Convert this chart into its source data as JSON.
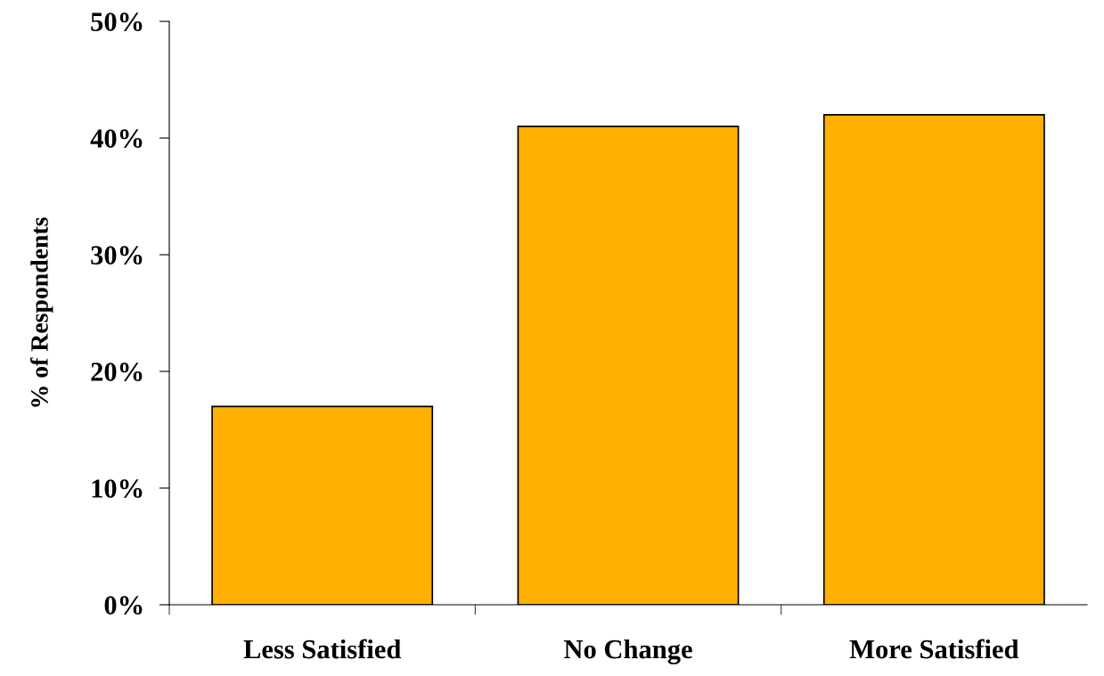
{
  "chart_data": {
    "type": "bar",
    "ylabel": "% of Respondents",
    "categories": [
      "Less Satisfied",
      "No Change",
      "More Satisfied"
    ],
    "values": [
      17,
      41,
      42
    ],
    "color": "#ffb000",
    "ylim": [
      0,
      50
    ],
    "yticks": [
      {
        "value": 0,
        "label": "0%"
      },
      {
        "value": 10,
        "label": "10%"
      },
      {
        "value": 20,
        "label": "20%"
      },
      {
        "value": 30,
        "label": "30%"
      },
      {
        "value": 40,
        "label": "40%"
      },
      {
        "value": 50,
        "label": "50%"
      }
    ],
    "grid": false,
    "legend": false
  }
}
